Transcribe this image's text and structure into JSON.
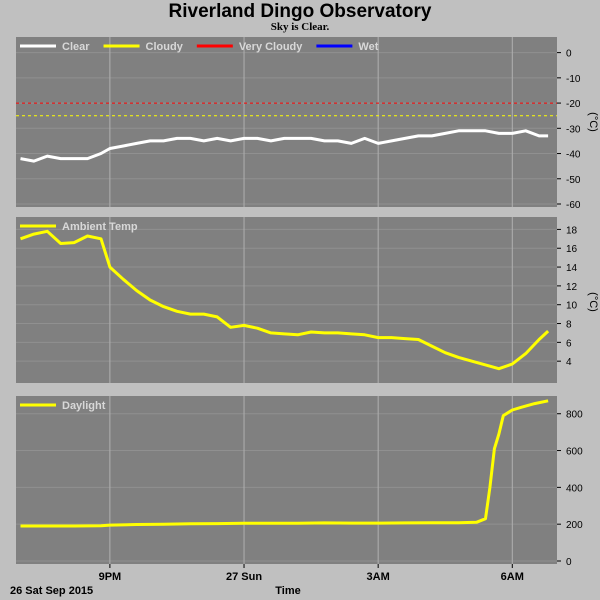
{
  "title": "Riverland Dingo Observatory",
  "subtitle": "Sky is Clear.",
  "x_axis": {
    "label": "Time",
    "start_label": "26 Sat Sep 2015",
    "ticks": [
      {
        "label": "9PM",
        "hour": 21
      },
      {
        "label": "27 Sun",
        "hour": 24
      },
      {
        "label": "3AM",
        "hour": 27
      },
      {
        "label": "6AM",
        "hour": 30
      }
    ],
    "range_hours": [
      18.9,
      31.0
    ]
  },
  "colors": {
    "panel_bg": "#808080",
    "grid": "#b0b0b0",
    "clear": "#ffffff",
    "cloudy": "#ffff00",
    "very_cloudy": "#ff0000",
    "wet": "#0000ff",
    "ambient": "#ffff00",
    "daylight": "#ffff00"
  },
  "chart_data": [
    {
      "type": "line",
      "panel": "sky",
      "unit": "(°C)",
      "ylim": [
        -60,
        5
      ],
      "yticks": [
        0,
        -10,
        -20,
        -30,
        -40,
        -50,
        -60
      ],
      "legend": [
        {
          "name": "Clear",
          "color_key": "clear"
        },
        {
          "name": "Cloudy",
          "color_key": "cloudy"
        },
        {
          "name": "Very Cloudy",
          "color_key": "very_cloudy"
        },
        {
          "name": "Wet",
          "color_key": "wet"
        }
      ],
      "thresholds": [
        {
          "value": -20,
          "color_key": "very_cloudy"
        },
        {
          "value": -25,
          "color_key": "cloudy"
        }
      ],
      "series": [
        {
          "name": "Clear",
          "color_key": "clear",
          "x": [
            19.0,
            19.3,
            19.6,
            19.9,
            20.2,
            20.5,
            20.8,
            21.0,
            21.3,
            21.6,
            21.9,
            22.2,
            22.5,
            22.8,
            23.1,
            23.4,
            23.7,
            24.0,
            24.3,
            24.6,
            24.9,
            25.2,
            25.5,
            25.8,
            26.1,
            26.4,
            26.7,
            27.0,
            27.3,
            27.6,
            27.9,
            28.2,
            28.5,
            28.8,
            29.1,
            29.4,
            29.7,
            30.0,
            30.3,
            30.6,
            30.8
          ],
          "y": [
            -42,
            -43,
            -41,
            -42,
            -42,
            -42,
            -40,
            -38,
            -37,
            -36,
            -35,
            -35,
            -34,
            -34,
            -35,
            -34,
            -35,
            -34,
            -34,
            -35,
            -34,
            -34,
            -34,
            -35,
            -35,
            -36,
            -34,
            -36,
            -35,
            -34,
            -33,
            -33,
            -32,
            -31,
            -31,
            -31,
            -32,
            -32,
            -31,
            -33,
            -33
          ]
        }
      ]
    },
    {
      "type": "line",
      "panel": "ambient",
      "unit": "(°C)",
      "ylim": [
        2,
        19
      ],
      "yticks": [
        18,
        16,
        14,
        12,
        10,
        8,
        6,
        4
      ],
      "legend": [
        {
          "name": "Ambient Temp",
          "color_key": "ambient"
        }
      ],
      "series": [
        {
          "name": "Ambient Temp",
          "color_key": "ambient",
          "x": [
            19.0,
            19.3,
            19.6,
            19.9,
            20.2,
            20.5,
            20.8,
            21.0,
            21.3,
            21.6,
            21.9,
            22.2,
            22.5,
            22.8,
            23.1,
            23.4,
            23.7,
            24.0,
            24.3,
            24.6,
            24.9,
            25.2,
            25.5,
            25.8,
            26.1,
            26.4,
            26.7,
            27.0,
            27.3,
            27.6,
            27.9,
            28.2,
            28.5,
            28.8,
            29.1,
            29.4,
            29.7,
            30.0,
            30.3,
            30.6,
            30.8
          ],
          "y": [
            17,
            17.5,
            17.8,
            16.5,
            16.6,
            17.3,
            17.0,
            14,
            12.7,
            11.5,
            10.5,
            9.8,
            9.3,
            9.0,
            9.0,
            8.7,
            7.6,
            7.8,
            7.5,
            7.0,
            6.9,
            6.8,
            7.1,
            7.0,
            7.0,
            6.9,
            6.8,
            6.5,
            6.5,
            6.4,
            6.3,
            5.6,
            4.9,
            4.4,
            4.0,
            3.6,
            3.2,
            3.7,
            4.8,
            6.3,
            7.2
          ]
        }
      ]
    },
    {
      "type": "line",
      "panel": "daylight",
      "ylim": [
        0,
        880
      ],
      "yticks": [
        800,
        600,
        400,
        200,
        0
      ],
      "legend": [
        {
          "name": "Daylight",
          "color_key": "daylight"
        }
      ],
      "series": [
        {
          "name": "Daylight",
          "color_key": "daylight",
          "x": [
            19.0,
            19.6,
            20.2,
            20.8,
            21.0,
            21.6,
            22.2,
            22.8,
            23.4,
            24.0,
            24.6,
            25.2,
            25.8,
            26.4,
            27.0,
            27.6,
            28.2,
            28.8,
            29.2,
            29.4,
            29.5,
            29.6,
            29.7,
            29.8,
            30.0,
            30.2,
            30.5,
            30.8
          ],
          "y": [
            190,
            190,
            190,
            191,
            195,
            198,
            200,
            202,
            203,
            205,
            205,
            205,
            207,
            206,
            206,
            207,
            208,
            208,
            210,
            230,
            400,
            610,
            690,
            790,
            820,
            835,
            855,
            870
          ]
        }
      ]
    }
  ]
}
